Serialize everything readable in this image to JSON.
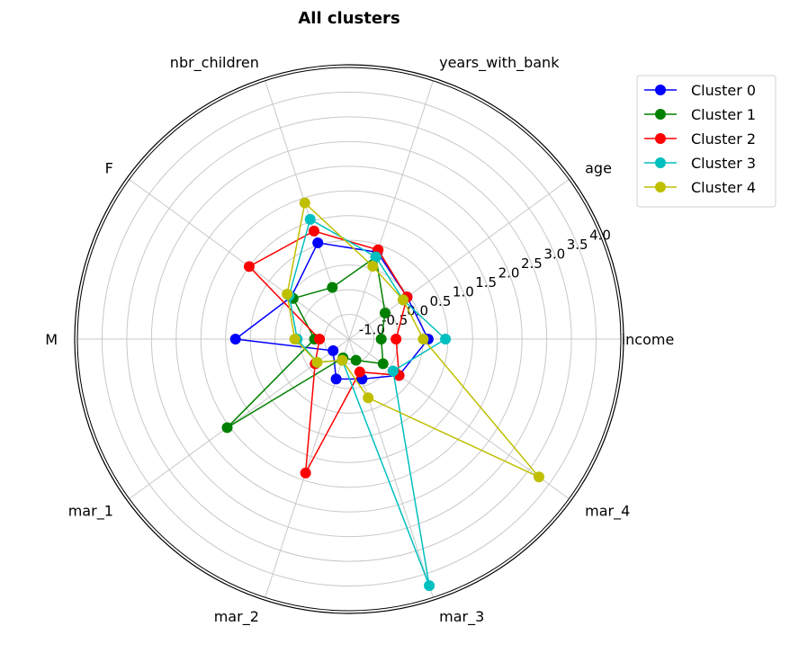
{
  "chart_data": {
    "type": "radar",
    "title": "All clusters",
    "axes": [
      "income",
      "age",
      "years_with_bank",
      "nbr_children",
      "F",
      "M",
      "mar_1",
      "mar_2",
      "mar_3",
      "mar_4"
    ],
    "rlim": [
      -1.5,
      4.0
    ],
    "r_ticks": [
      "-1.0",
      "-0.5",
      "0.0",
      "0.5",
      "1.0",
      "1.5",
      "2.0",
      "2.5",
      "3.0",
      "3.5",
      "4.0"
    ],
    "r_tick_values": [
      -1.0,
      -0.5,
      0.0,
      0.5,
      1.0,
      1.5,
      2.0,
      2.5,
      3.0,
      3.5,
      4.0
    ],
    "grid": true,
    "legend_position": "top-right",
    "series": [
      {
        "name": "Cluster 0",
        "color": "#0000ff",
        "values": [
          0.1,
          -0.05,
          0.35,
          0.55,
          -0.05,
          0.8,
          -1.1,
          -0.65,
          -0.65,
          -0.25
        ]
      },
      {
        "name": "Cluster 1",
        "color": "#008000",
        "values": [
          -0.85,
          -0.6,
          0.25,
          -0.4,
          -0.1,
          -0.8,
          1.55,
          -1.1,
          -1.05,
          -0.65
        ]
      },
      {
        "name": "Cluster 2",
        "color": "#ff0000",
        "values": [
          -0.55,
          -0.05,
          0.4,
          0.8,
          1.0,
          -0.9,
          -0.65,
          1.35,
          -0.8,
          -0.25
        ]
      },
      {
        "name": "Cluster 3",
        "color": "#00bfbf",
        "values": [
          0.45,
          -0.15,
          0.25,
          1.05,
          0.0,
          -0.45,
          -0.7,
          -1.05,
          3.75,
          -0.4
        ]
      },
      {
        "name": "Cluster 4",
        "color": "#bfbf00",
        "values": [
          0.0,
          -0.15,
          0.05,
          1.4,
          0.05,
          -0.4,
          -0.7,
          -1.05,
          -0.25,
          3.25
        ]
      }
    ]
  }
}
